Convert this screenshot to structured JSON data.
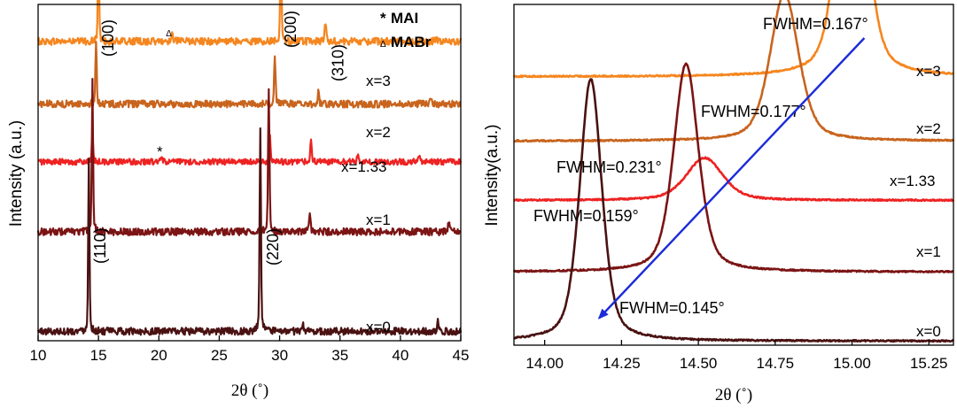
{
  "chart_data": [
    {
      "type": "line",
      "panel": "left",
      "xlabel": "2θ (˚)",
      "ylabel": "Intensity (a.u.)",
      "xlim": [
        10,
        45
      ],
      "xticks": [
        "10",
        "15",
        "20",
        "25",
        "30",
        "35",
        "40",
        "45"
      ],
      "legend_items": [
        {
          "symbol": "*",
          "label": "MAI"
        },
        {
          "symbol": "Δ",
          "label": "MABr"
        }
      ],
      "series": [
        {
          "name": "x=3",
          "color": "#f5861f",
          "baseline_frac": 0.11,
          "noise": 0.3,
          "peaks": [
            [
              15.0,
              10.5,
              0.1
            ],
            [
              21.1,
              0.6,
              0.22
            ],
            [
              30.1,
              7.7,
              0.13
            ],
            [
              33.8,
              1.5,
              0.15
            ],
            [
              43.0,
              0.4,
              0.15
            ]
          ]
        },
        {
          "name": "x=2",
          "color": "#c8641d",
          "baseline_frac": 0.296,
          "noise": 0.3,
          "peaks": [
            [
              14.8,
              5.2,
              0.12
            ],
            [
              29.6,
              4.1,
              0.14
            ],
            [
              33.2,
              1.0,
              0.15
            ],
            [
              42.5,
              0.5,
              0.15
            ]
          ]
        },
        {
          "name": "x=1.33",
          "color": "#ee2222",
          "baseline_frac": 0.468,
          "noise": 0.25,
          "peaks": [
            [
              14.5,
              2.3,
              0.12
            ],
            [
              20.2,
              0.3,
              0.2
            ],
            [
              29.2,
              2.0,
              0.14
            ],
            [
              32.6,
              1.7,
              0.15
            ],
            [
              36.5,
              0.5,
              0.2
            ],
            [
              41.6,
              0.4,
              0.2
            ]
          ]
        },
        {
          "name": "x=1",
          "color": "#7b1414",
          "baseline_frac": 0.676,
          "noise": 0.3,
          "peaks": [
            [
              14.5,
              12.5,
              0.12
            ],
            [
              29.1,
              12.0,
              0.13
            ],
            [
              32.5,
              1.3,
              0.15
            ],
            [
              44.0,
              0.7,
              0.15
            ]
          ]
        },
        {
          "name": "x=0",
          "color": "#4a1212",
          "baseline_frac": 0.972,
          "noise": 0.3,
          "peaks": [
            [
              14.2,
              14.2,
              0.12
            ],
            [
              28.4,
              16.6,
              0.13
            ],
            [
              31.9,
              0.7,
              0.15
            ],
            [
              43.1,
              0.8,
              0.15
            ]
          ]
        }
      ],
      "annotations": [
        {
          "text": "(100)",
          "x": 15.0,
          "series": "x=3",
          "rotate": true
        },
        {
          "text": "(200)",
          "x": 30.1,
          "series": "x=3",
          "rotate": true
        },
        {
          "text": "(310)",
          "x": 33.8,
          "series": "x=3",
          "rotate": true
        },
        {
          "text": "(110)",
          "x": 14.2,
          "series": "x=0",
          "rotate": true
        },
        {
          "text": "(220)",
          "x": 28.4,
          "series": "x=0",
          "rotate": true
        },
        {
          "text": "Δ",
          "x": 21.1,
          "series": "x=3",
          "rotate": false
        },
        {
          "text": "*",
          "x": 20.2,
          "series": "x=1.33",
          "rotate": false
        }
      ]
    },
    {
      "type": "line",
      "panel": "right",
      "xlabel": "2θ (˚)",
      "ylabel": "Intensity(a.u.)",
      "xlim": [
        13.9,
        15.33
      ],
      "xticks": [
        "14.00",
        "14.25",
        "14.50",
        "14.75",
        "15.00",
        "15.25"
      ],
      "arrow": {
        "from": [
          15.04,
          "x=3"
        ],
        "to": [
          14.16,
          "x=0"
        ],
        "color": "#1b2bd8"
      },
      "series": [
        {
          "name": "x=3",
          "color": "#f5861f",
          "baseline_frac": 0.212,
          "noise": 0.05,
          "peaks": [
            [
              15.0,
              21.1,
              0.1
            ]
          ],
          "fwhm_label": "FWHM=0.167°"
        },
        {
          "name": "x=2",
          "color": "#c8641d",
          "baseline_frac": 0.401,
          "noise": 0.05,
          "peaks": [
            [
              14.78,
              10.4,
              0.11
            ]
          ],
          "fwhm_label": "FWHM=0.177°"
        },
        {
          "name": "x=1.33",
          "color": "#ee2222",
          "baseline_frac": 0.575,
          "noise": 0.05,
          "peaks": [
            [
              14.52,
              3.0,
              0.14
            ]
          ],
          "fwhm_label": "FWHM=0.231°"
        },
        {
          "name": "x=1",
          "color": "#7b1414",
          "baseline_frac": 0.785,
          "noise": 0.05,
          "peaks": [
            [
              14.46,
              14.7,
              0.095
            ]
          ],
          "fwhm_label": "FWHM=0.159°"
        },
        {
          "name": "x=0",
          "color": "#4a1212",
          "baseline_frac": 0.988,
          "noise": 0.05,
          "peaks": [
            [
              14.15,
              18.5,
              0.085
            ]
          ],
          "fwhm_label": "FWHM=0.145°"
        }
      ]
    }
  ]
}
